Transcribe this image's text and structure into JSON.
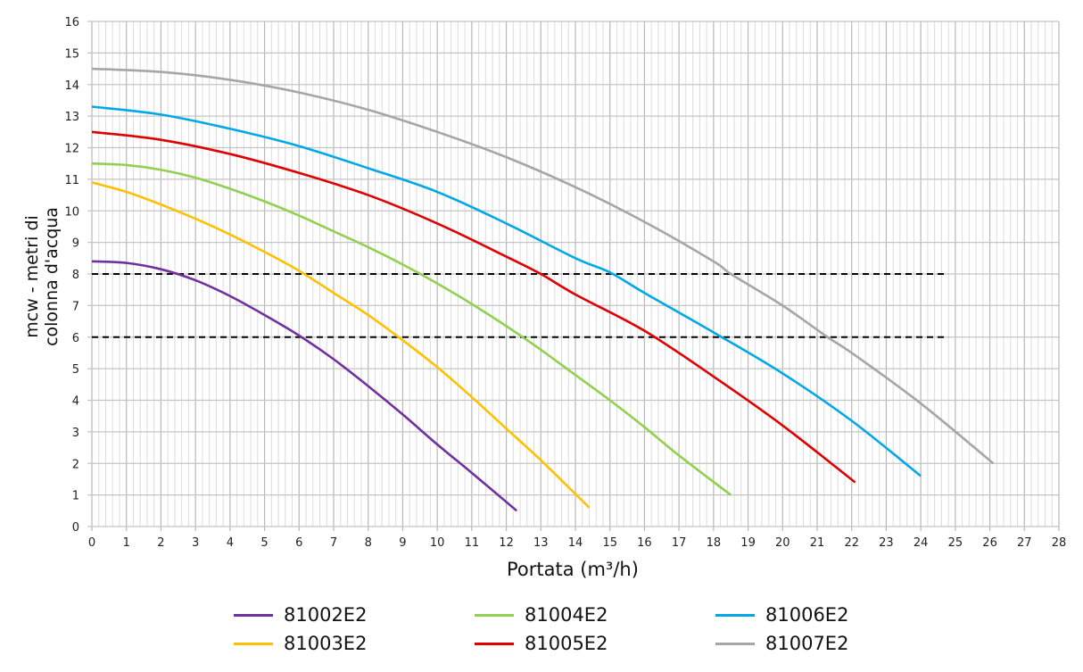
{
  "chart_data": {
    "type": "line",
    "title": "",
    "xlabel": "Portata (m³/h)",
    "ylabel_lines": [
      "mcw - metri di",
      "colonna d'acqua"
    ],
    "xlim": [
      0,
      28
    ],
    "ylim": [
      0,
      16
    ],
    "xticks": [
      0,
      1,
      2,
      3,
      4,
      5,
      6,
      7,
      8,
      9,
      10,
      11,
      12,
      13,
      14,
      15,
      16,
      17,
      18,
      19,
      20,
      21,
      22,
      23,
      24,
      25,
      26,
      27,
      28
    ],
    "yticks": [
      0,
      1,
      2,
      3,
      4,
      5,
      6,
      7,
      8,
      9,
      10,
      11,
      12,
      13,
      14,
      15,
      16
    ],
    "grid": true,
    "legend_position": "bottom",
    "reference_lines": [
      {
        "y": 8,
        "x_range": [
          0,
          24.8
        ],
        "style": "dashed",
        "color": "#000000"
      },
      {
        "y": 6,
        "x_range": [
          0,
          24.8
        ],
        "style": "dashed",
        "color": "#000000"
      }
    ],
    "series": [
      {
        "name": "81002E2",
        "color": "#7030a0",
        "points": [
          [
            0,
            8.4
          ],
          [
            1,
            8.35
          ],
          [
            2,
            8.15
          ],
          [
            3,
            7.8
          ],
          [
            4,
            7.3
          ],
          [
            5,
            6.7
          ],
          [
            6,
            6.05
          ],
          [
            7,
            5.3
          ],
          [
            8,
            4.45
          ],
          [
            9,
            3.55
          ],
          [
            10,
            2.6
          ],
          [
            11,
            1.7
          ],
          [
            12.3,
            0.5
          ]
        ]
      },
      {
        "name": "81003E2",
        "color": "#ffc000",
        "points": [
          [
            0,
            10.9
          ],
          [
            1,
            10.6
          ],
          [
            2,
            10.2
          ],
          [
            3,
            9.75
          ],
          [
            4,
            9.25
          ],
          [
            5,
            8.7
          ],
          [
            6,
            8.1
          ],
          [
            7,
            7.4
          ],
          [
            8,
            6.7
          ],
          [
            9,
            5.9
          ],
          [
            10,
            5.05
          ],
          [
            11,
            4.1
          ],
          [
            12,
            3.1
          ],
          [
            13,
            2.1
          ],
          [
            14.4,
            0.6
          ]
        ]
      },
      {
        "name": "81004E2",
        "color": "#92d050",
        "points": [
          [
            0,
            11.5
          ],
          [
            1,
            11.45
          ],
          [
            2,
            11.3
          ],
          [
            3,
            11.05
          ],
          [
            4,
            10.7
          ],
          [
            5,
            10.3
          ],
          [
            6,
            9.85
          ],
          [
            7,
            9.35
          ],
          [
            8,
            8.85
          ],
          [
            9,
            8.3
          ],
          [
            10,
            7.7
          ],
          [
            11,
            7.05
          ],
          [
            12,
            6.35
          ],
          [
            13,
            5.6
          ],
          [
            14,
            4.8
          ],
          [
            15,
            4.0
          ],
          [
            16,
            3.15
          ],
          [
            17,
            2.25
          ],
          [
            18.5,
            1.0
          ]
        ]
      },
      {
        "name": "81005E2",
        "color": "#e00000",
        "points": [
          [
            0,
            12.5
          ],
          [
            2,
            12.25
          ],
          [
            4,
            11.8
          ],
          [
            6,
            11.2
          ],
          [
            8,
            10.5
          ],
          [
            10,
            9.6
          ],
          [
            12,
            8.55
          ],
          [
            13,
            8.0
          ],
          [
            14,
            7.35
          ],
          [
            16,
            6.2
          ],
          [
            18,
            4.75
          ],
          [
            20,
            3.2
          ],
          [
            22.1,
            1.4
          ]
        ]
      },
      {
        "name": "81006E2",
        "color": "#00a8e8",
        "points": [
          [
            0,
            13.3
          ],
          [
            2,
            13.05
          ],
          [
            4,
            12.6
          ],
          [
            6,
            12.05
          ],
          [
            8,
            11.35
          ],
          [
            10,
            10.6
          ],
          [
            12,
            9.6
          ],
          [
            14,
            8.5
          ],
          [
            15,
            8.05
          ],
          [
            16,
            7.4
          ],
          [
            18,
            6.15
          ],
          [
            20,
            4.85
          ],
          [
            22,
            3.35
          ],
          [
            24,
            1.6
          ]
        ]
      },
      {
        "name": "81007E2",
        "color": "#a6a6a6",
        "points": [
          [
            0,
            14.5
          ],
          [
            2,
            14.4
          ],
          [
            4,
            14.15
          ],
          [
            6,
            13.75
          ],
          [
            8,
            13.2
          ],
          [
            10,
            12.5
          ],
          [
            12,
            11.7
          ],
          [
            14,
            10.75
          ],
          [
            16,
            9.65
          ],
          [
            18,
            8.4
          ],
          [
            18.5,
            8.0
          ],
          [
            20,
            7.0
          ],
          [
            21.3,
            6.0
          ],
          [
            22,
            5.5
          ],
          [
            24,
            3.9
          ],
          [
            26.1,
            2.0
          ]
        ]
      }
    ]
  }
}
